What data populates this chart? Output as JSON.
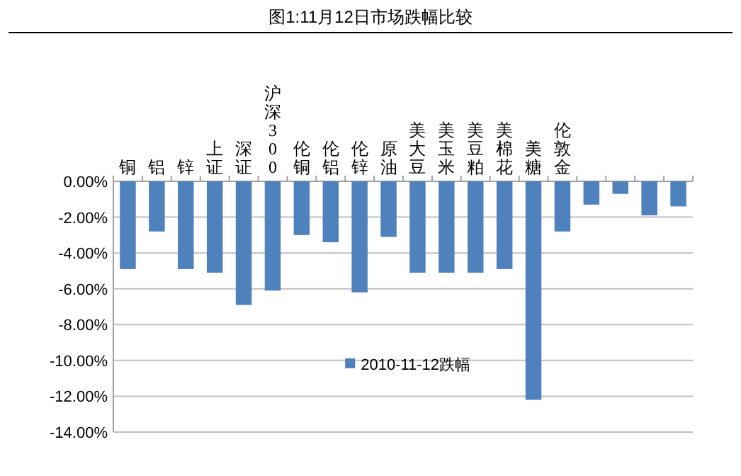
{
  "chart_data": {
    "type": "bar",
    "title": "图1:11月12日市场跌幅比较",
    "categories": [
      "铜",
      "铝",
      "锌",
      "上证",
      "深证",
      "沪深300",
      "伦铜",
      "伦铝",
      "伦锌",
      "原油",
      "美大豆",
      "美玉米",
      "美豆粕",
      "美棉花",
      "美糖",
      "伦敦金",
      null,
      null,
      null,
      null
    ],
    "series": [
      {
        "name": "2010-11-12跌幅",
        "color": "#4f81bd",
        "values": [
          -4.9,
          -2.8,
          -4.9,
          -5.1,
          -6.9,
          -6.1,
          -3.0,
          -3.4,
          -6.2,
          -3.1,
          -5.1,
          -5.1,
          -5.1,
          -4.9,
          -12.2,
          -2.8,
          -1.3,
          -0.7,
          -1.9,
          -1.4
        ]
      }
    ],
    "ylim": [
      -14,
      0
    ],
    "yticks": [
      {
        "value": 0,
        "label": "0.00%"
      },
      {
        "value": -2,
        "label": "-2.00%"
      },
      {
        "value": -4,
        "label": "-4.00%"
      },
      {
        "value": -6,
        "label": "-6.00%"
      },
      {
        "value": -8,
        "label": "-8.00%"
      },
      {
        "value": -10,
        "label": "-10.00%"
      },
      {
        "value": -12,
        "label": "-12.00%"
      },
      {
        "value": -14,
        "label": "-14.00%"
      }
    ],
    "grid": "y",
    "legend": "bottom"
  }
}
